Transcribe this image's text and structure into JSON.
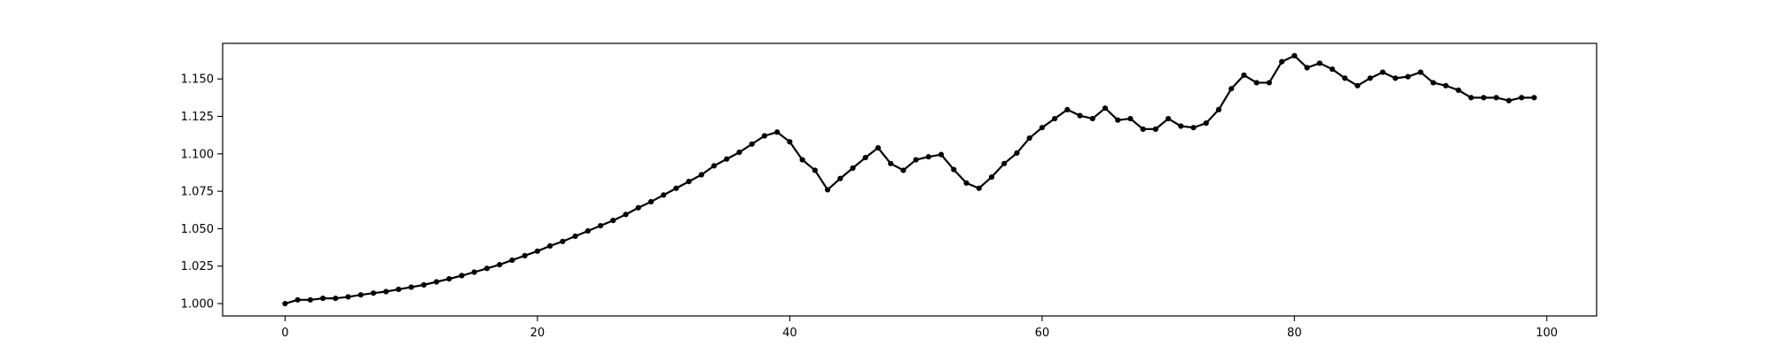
{
  "chart_data": {
    "type": "line",
    "x": [
      0,
      1,
      2,
      3,
      4,
      5,
      6,
      7,
      8,
      9,
      10,
      11,
      12,
      13,
      14,
      15,
      16,
      17,
      18,
      19,
      20,
      21,
      22,
      23,
      24,
      25,
      26,
      27,
      28,
      29,
      30,
      31,
      32,
      33,
      34,
      35,
      36,
      37,
      38,
      39,
      40,
      41,
      42,
      43,
      44,
      45,
      46,
      47,
      48,
      49,
      50,
      51,
      52,
      53,
      54,
      55,
      56,
      57,
      58,
      59,
      60,
      61,
      62,
      63,
      64,
      65,
      66,
      67,
      68,
      69,
      70,
      71,
      72,
      73,
      74,
      75,
      76,
      77,
      78,
      79,
      80,
      81,
      82,
      83,
      84,
      85,
      86,
      87,
      88,
      89,
      90,
      91,
      92,
      93,
      94,
      95,
      96,
      97,
      98,
      99
    ],
    "series": [
      {
        "values": [
          1.0,
          1.0025,
          1.0025,
          1.0035,
          1.0035,
          1.0045,
          1.0058,
          1.007,
          1.008,
          1.0095,
          1.011,
          1.0125,
          1.0145,
          1.0165,
          1.0187,
          1.021,
          1.0235,
          1.026,
          1.029,
          1.032,
          1.035,
          1.0385,
          1.0415,
          1.045,
          1.0485,
          1.052,
          1.0555,
          1.0595,
          1.064,
          1.068,
          1.0725,
          1.077,
          1.0815,
          1.086,
          1.092,
          1.0965,
          1.101,
          1.1065,
          1.112,
          1.1145,
          1.108,
          1.096,
          1.089,
          1.076,
          1.0835,
          1.0905,
          1.0975,
          1.104,
          1.0935,
          1.089,
          1.096,
          1.098,
          1.0995,
          1.0895,
          1.0805,
          1.077,
          1.0845,
          1.0935,
          1.1005,
          1.1105,
          1.1175,
          1.1235,
          1.1295,
          1.1255,
          1.1235,
          1.1305,
          1.1225,
          1.1235,
          1.1165,
          1.1165,
          1.1235,
          1.1185,
          1.1175,
          1.1205,
          1.1295,
          1.1435,
          1.1525,
          1.1475,
          1.1475,
          1.1615,
          1.1655,
          1.1575,
          1.1605,
          1.1565,
          1.1505,
          1.1455,
          1.1505,
          1.1545,
          1.1505,
          1.1515,
          1.1545,
          1.1475,
          1.1455,
          1.1425,
          1.1375,
          1.1375,
          1.1375,
          1.1355,
          1.1375,
          1.1375
        ],
        "color": "#000000"
      }
    ],
    "xlim": [
      -4.95,
      103.95
    ],
    "ylim": [
      0.99175,
      1.17375
    ],
    "xticks": [
      0,
      20,
      40,
      60,
      80,
      100
    ],
    "xtick_labels": [
      "0",
      "20",
      "40",
      "60",
      "80",
      "100"
    ],
    "yticks": [
      1.0,
      1.025,
      1.05,
      1.075,
      1.1,
      1.125,
      1.15
    ],
    "ytick_labels": [
      "1.000",
      "1.025",
      "1.050",
      "1.075",
      "1.100",
      "1.125",
      "1.150"
    ],
    "title": "",
    "xlabel": "",
    "ylabel": "",
    "grid": false,
    "markers": true
  }
}
